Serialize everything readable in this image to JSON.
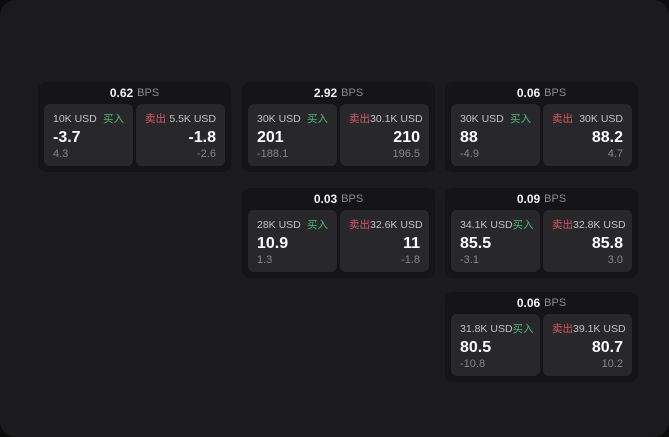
{
  "theme": {
    "body_bg": "#0c0c0d",
    "panel_bg": "#1b1b1d",
    "card_bg": "#151517",
    "tile_bg": "#28282b",
    "buy_color": "#4fb87a",
    "sell_color": "#d9566b",
    "amount_color": "#c3c3c7",
    "muted_color": "#87878b",
    "price_color": "#fafafa"
  },
  "labels": {
    "bps": "BPS",
    "buy": "买入",
    "sell": "卖出"
  },
  "cards": [
    {
      "bps": "0.62",
      "buy": {
        "amount": "10K USD",
        "price": "-3.7",
        "sub": "4.3"
      },
      "sell": {
        "amount": "5.5K USD",
        "price": "-1.8",
        "sub": "-2.6"
      }
    },
    {
      "bps": "2.92",
      "buy": {
        "amount": "30K USD",
        "price": "201",
        "sub": "-188.1"
      },
      "sell": {
        "amount": "30.1K USD",
        "price": "210",
        "sub": "196.5"
      }
    },
    {
      "bps": "0.03",
      "buy": {
        "amount": "28K USD",
        "price": "10.9",
        "sub": "1.3"
      },
      "sell": {
        "amount": "32.6K USD",
        "price": "11",
        "sub": "-1.8"
      }
    },
    {
      "bps": "0.06",
      "buy": {
        "amount": "30K USD",
        "price": "88",
        "sub": "-4.9"
      },
      "sell": {
        "amount": "30K USD",
        "price": "88.2",
        "sub": "4.7"
      }
    },
    {
      "bps": "0.09",
      "buy": {
        "amount": "34.1K USD",
        "price": "85.5",
        "sub": "-3.1"
      },
      "sell": {
        "amount": "32.8K USD",
        "price": "85.8",
        "sub": "3.0"
      }
    },
    {
      "bps": "0.06",
      "buy": {
        "amount": "31.8K USD",
        "price": "80.5",
        "sub": "-10.8"
      },
      "sell": {
        "amount": "39.1K USD",
        "price": "80.7",
        "sub": "10.2"
      }
    }
  ]
}
